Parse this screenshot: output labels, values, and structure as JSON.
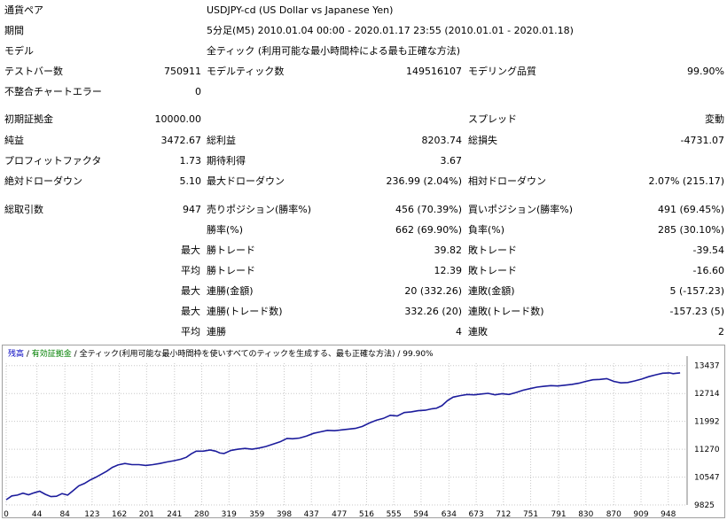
{
  "rows": [
    {
      "id": "symbol",
      "label": "通貨ペア",
      "value": "USDJPY-cd (US Dollar vs Japanese Yen)"
    },
    {
      "id": "period",
      "label": "期間",
      "value": "5分足(M5) 2010.01.04 00:00 - 2020.01.17 23:55 (2010.01.01 - 2020.01.18)"
    },
    {
      "id": "model",
      "label": "モデル",
      "value": "全ティック (利用可能な最小時間枠による最も正確な方法)"
    }
  ],
  "stats": [
    {
      "id": "bars-tested",
      "label": "テストバー数",
      "value": "750911",
      "col": 1,
      "row": 3
    },
    {
      "id": "ticks-modelled",
      "label": "モデルティック数",
      "value": "149516107",
      "col": 2,
      "row": 3
    },
    {
      "id": "modelling-quality",
      "label": "モデリング品質",
      "value": "99.90%",
      "col": 3,
      "row": 3
    },
    {
      "id": "mismatched-errors",
      "label": "不整合チャートエラー",
      "value": "0",
      "col": 1,
      "row": 4
    },
    {
      "id": "initial-deposit",
      "label": "初期証拠金",
      "value": "10000.00",
      "col": 1,
      "row": 5
    },
    {
      "id": "spread",
      "label": "スプレッド",
      "value": "変動",
      "col": 3,
      "row": 5
    },
    {
      "id": "net-profit",
      "label": "純益",
      "value": "3472.67",
      "col": 1,
      "row": 6
    },
    {
      "id": "gross-profit",
      "label": "総利益",
      "value": "8203.74",
      "col": 2,
      "row": 6
    },
    {
      "id": "gross-loss",
      "label": "総損失",
      "value": "-4731.07",
      "col": 3,
      "row": 6
    },
    {
      "id": "profit-factor",
      "label": "プロフィットファクタ",
      "value": "1.73",
      "col": 1,
      "row": 7
    },
    {
      "id": "expected-payoff",
      "label": "期待利得",
      "value": "3.67",
      "col": 2,
      "row": 7
    },
    {
      "id": "absolute-drawdown",
      "label": "絶対ドローダウン",
      "value": "5.10",
      "col": 1,
      "row": 8
    },
    {
      "id": "maximal-drawdown",
      "label": "最大ドローダウン",
      "value": "236.99 (2.04%)",
      "col": 2,
      "row": 8
    },
    {
      "id": "relative-drawdown",
      "label": "相対ドローダウン",
      "value": "2.07% (215.17)",
      "col": 3,
      "row": 8
    },
    {
      "id": "total-trades",
      "label": "総取引数",
      "value": "947",
      "col": 1,
      "row": 9
    },
    {
      "id": "short-positions",
      "label": "売りポジション(勝率%)",
      "value": "456 (70.39%)",
      "col": 2,
      "row": 9
    },
    {
      "id": "long-positions",
      "label": "買いポジション(勝率%)",
      "value": "491 (69.45%)",
      "col": 3,
      "row": 9
    },
    {
      "id": "profit-trades",
      "label": "勝率(%)",
      "value": "662 (69.90%)",
      "col": 2,
      "row": 10
    },
    {
      "id": "loss-trades",
      "label": "負率(%)",
      "value": "285 (30.10%)",
      "col": 3,
      "row": 10
    },
    {
      "id": "largest-profit",
      "prefix": "最大",
      "label": "勝トレード",
      "value": "39.82",
      "col": 2,
      "row": 11
    },
    {
      "id": "largest-loss",
      "label": "敗トレード",
      "value": "-39.54",
      "col": 3,
      "row": 11
    },
    {
      "id": "average-profit",
      "prefix": "平均",
      "label": "勝トレード",
      "value": "12.39",
      "col": 2,
      "row": 12
    },
    {
      "id": "average-loss",
      "label": "敗トレード",
      "value": "-16.60",
      "col": 3,
      "row": 12
    },
    {
      "id": "max-consecutive-wins",
      "prefix": "最大",
      "label": "連勝(金額)",
      "value": "20 (332.26)",
      "col": 2,
      "row": 13
    },
    {
      "id": "max-consecutive-losses",
      "label": "連敗(金額)",
      "value": "5 (-157.23)",
      "col": 3,
      "row": 13
    },
    {
      "id": "max-consecutive-profit",
      "prefix": "最大",
      "label": "連勝(トレード数)",
      "value": "332.26 (20)",
      "col": 2,
      "row": 14
    },
    {
      "id": "max-consecutive-loss",
      "label": "連敗(トレード数)",
      "value": "-157.23 (5)",
      "col": 3,
      "row": 14
    },
    {
      "id": "avg-consecutive-wins",
      "prefix": "平均",
      "label": "連勝",
      "value": "4",
      "col": 2,
      "row": 15
    },
    {
      "id": "avg-consecutive-losses",
      "label": "連敗",
      "value": "2",
      "col": 3,
      "row": 15
    }
  ],
  "chart_legend": {
    "balance": "残高",
    "sep1": " / ",
    "equity": "有効証拠金",
    "sep2": " / ",
    "model": "全ティック(利用可能な最小時間枠を使いすべてのティックを生成する、最も正確な方法)",
    "sep3": " / ",
    "quality": "99.90%"
  },
  "colors": {
    "balance": "#1c1c9c",
    "legend_equity": "#008000",
    "legend_balance": "#0000c0",
    "grid": "#c8c8c8"
  },
  "chart_data": {
    "type": "line",
    "x_ticks": [
      "0",
      "44",
      "84",
      "123",
      "162",
      "201",
      "241",
      "280",
      "319",
      "359",
      "398",
      "437",
      "477",
      "516",
      "555",
      "594",
      "634",
      "673",
      "712",
      "751",
      "791",
      "830",
      "870",
      "909",
      "948"
    ],
    "y_ticks": [
      "13437",
      "12714",
      "11992",
      "11270",
      "10547",
      "9825"
    ],
    "ylim": [
      9825,
      13500
    ],
    "xlim": [
      0,
      975
    ],
    "series": [
      {
        "values": [
          [
            0,
            9960
          ],
          [
            8,
            10060
          ],
          [
            16,
            10080
          ],
          [
            24,
            10130
          ],
          [
            32,
            10090
          ],
          [
            40,
            10140
          ],
          [
            48,
            10180
          ],
          [
            56,
            10100
          ],
          [
            64,
            10040
          ],
          [
            72,
            10050
          ],
          [
            80,
            10120
          ],
          [
            88,
            10080
          ],
          [
            96,
            10200
          ],
          [
            104,
            10320
          ],
          [
            112,
            10380
          ],
          [
            120,
            10470
          ],
          [
            128,
            10540
          ],
          [
            136,
            10620
          ],
          [
            144,
            10700
          ],
          [
            152,
            10800
          ],
          [
            160,
            10860
          ],
          [
            170,
            10900
          ],
          [
            180,
            10870
          ],
          [
            190,
            10870
          ],
          [
            200,
            10850
          ],
          [
            210,
            10870
          ],
          [
            220,
            10900
          ],
          [
            230,
            10940
          ],
          [
            240,
            10970
          ],
          [
            250,
            11010
          ],
          [
            258,
            11060
          ],
          [
            265,
            11150
          ],
          [
            272,
            11220
          ],
          [
            282,
            11220
          ],
          [
            292,
            11250
          ],
          [
            300,
            11220
          ],
          [
            306,
            11170
          ],
          [
            312,
            11160
          ],
          [
            322,
            11240
          ],
          [
            332,
            11270
          ],
          [
            342,
            11290
          ],
          [
            352,
            11270
          ],
          [
            362,
            11300
          ],
          [
            372,
            11340
          ],
          [
            382,
            11400
          ],
          [
            392,
            11460
          ],
          [
            402,
            11550
          ],
          [
            410,
            11540
          ],
          [
            420,
            11560
          ],
          [
            430,
            11610
          ],
          [
            440,
            11680
          ],
          [
            450,
            11720
          ],
          [
            460,
            11760
          ],
          [
            470,
            11750
          ],
          [
            480,
            11770
          ],
          [
            490,
            11790
          ],
          [
            500,
            11810
          ],
          [
            510,
            11860
          ],
          [
            520,
            11950
          ],
          [
            530,
            12020
          ],
          [
            540,
            12070
          ],
          [
            550,
            12150
          ],
          [
            560,
            12130
          ],
          [
            570,
            12220
          ],
          [
            580,
            12240
          ],
          [
            590,
            12270
          ],
          [
            600,
            12280
          ],
          [
            610,
            12320
          ],
          [
            616,
            12330
          ],
          [
            624,
            12400
          ],
          [
            632,
            12530
          ],
          [
            640,
            12620
          ],
          [
            650,
            12660
          ],
          [
            660,
            12690
          ],
          [
            670,
            12680
          ],
          [
            680,
            12700
          ],
          [
            690,
            12720
          ],
          [
            700,
            12680
          ],
          [
            710,
            12710
          ],
          [
            720,
            12690
          ],
          [
            730,
            12740
          ],
          [
            740,
            12800
          ],
          [
            750,
            12840
          ],
          [
            760,
            12880
          ],
          [
            770,
            12900
          ],
          [
            780,
            12920
          ],
          [
            790,
            12910
          ],
          [
            800,
            12930
          ],
          [
            810,
            12950
          ],
          [
            820,
            12980
          ],
          [
            830,
            13030
          ],
          [
            840,
            13070
          ],
          [
            850,
            13080
          ],
          [
            860,
            13100
          ],
          [
            870,
            13030
          ],
          [
            880,
            12990
          ],
          [
            890,
            13000
          ],
          [
            900,
            13040
          ],
          [
            910,
            13090
          ],
          [
            920,
            13150
          ],
          [
            930,
            13200
          ],
          [
            940,
            13240
          ],
          [
            950,
            13250
          ],
          [
            955,
            13230
          ],
          [
            960,
            13240
          ],
          [
            965,
            13250
          ]
        ]
      }
    ]
  }
}
